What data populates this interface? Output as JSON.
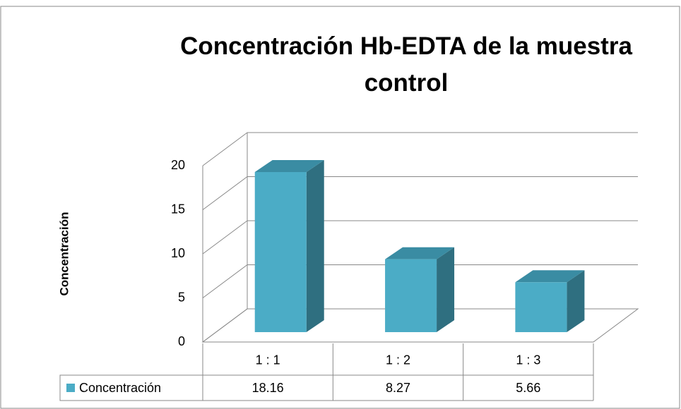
{
  "chart_data": {
    "type": "bar3d",
    "title": "Concentración Hb-EDTA de la muestra control",
    "y_label": "Concentración",
    "categories": [
      "1 : 1",
      "1 : 2",
      "1  : 3"
    ],
    "series": [
      {
        "name": "Concentración",
        "color": "#4bacc6",
        "values": [
          18.16,
          8.27,
          5.66
        ]
      }
    ],
    "ylim": [
      0,
      20
    ],
    "yticks": [
      0,
      5,
      10,
      15,
      20
    ],
    "grid": true,
    "data_table": true
  }
}
